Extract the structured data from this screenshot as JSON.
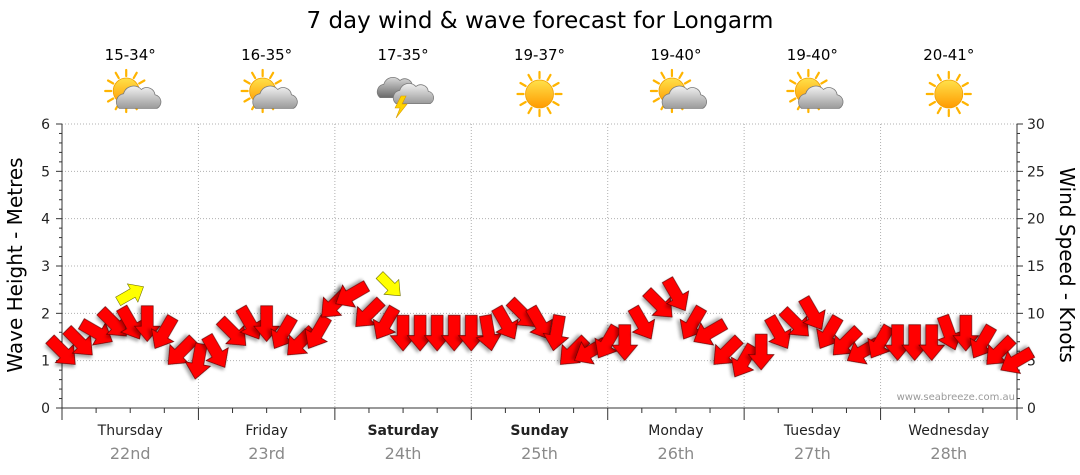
{
  "chart_data": {
    "type": "line",
    "title": "7 day wind & wave forecast for Longarm",
    "ylabel_left": "Wave Height - Metres",
    "ylabel_right": "Wind Speed - Knots",
    "ylim_left": [
      0,
      6
    ],
    "ylim_right": [
      0,
      30
    ],
    "yticks_left": [
      "0",
      "1",
      "2",
      "3",
      "4",
      "5",
      "6"
    ],
    "yticks_right": [
      "0",
      "5",
      "10",
      "15",
      "20",
      "25",
      "30"
    ],
    "days": [
      {
        "name": "Thursday",
        "date": "22nd",
        "temp": "15-34°",
        "icon": "partly-cloudy-icon",
        "bold": false
      },
      {
        "name": "Friday",
        "date": "23rd",
        "temp": "16-35°",
        "icon": "partly-cloudy-icon",
        "bold": false
      },
      {
        "name": "Saturday",
        "date": "24th",
        "temp": "17-35°",
        "icon": "thunderstorm-icon",
        "bold": true
      },
      {
        "name": "Sunday",
        "date": "25th",
        "temp": "19-37°",
        "icon": "sunny-icon",
        "bold": true
      },
      {
        "name": "Monday",
        "date": "26th",
        "temp": "19-40°",
        "icon": "partly-cloudy-icon",
        "bold": false
      },
      {
        "name": "Tuesday",
        "date": "27th",
        "temp": "19-40°",
        "icon": "partly-cloudy-icon",
        "bold": false
      },
      {
        "name": "Wednesday",
        "date": "28th",
        "temp": "20-41°",
        "icon": "sunny-icon",
        "bold": false
      }
    ],
    "wind_series": {
      "name": "Wind (knots)",
      "time_days": [
        0.0,
        0.125,
        0.25,
        0.375,
        0.5,
        0.625,
        0.75,
        0.875,
        1.0,
        1.125,
        1.25,
        1.375,
        1.5,
        1.625,
        1.75,
        1.875,
        2.0,
        2.125,
        2.25,
        2.375,
        2.5,
        2.625,
        2.75,
        2.875,
        3.0,
        3.125,
        3.25,
        3.375,
        3.5,
        3.625,
        3.75,
        3.875,
        4.0,
        4.125,
        4.25,
        4.375,
        4.5,
        4.625,
        4.75,
        4.875,
        5.0,
        5.125,
        5.25,
        5.375,
        5.5,
        5.625,
        5.75,
        5.875,
        6.0,
        6.125,
        6.25,
        6.375,
        6.5,
        6.625,
        6.75,
        6.875,
        7.0
      ],
      "knots": [
        6,
        7,
        8,
        9,
        9,
        9,
        8,
        6,
        5,
        6,
        8,
        9,
        9,
        8,
        7,
        8,
        11,
        12,
        10,
        9,
        8,
        8,
        8,
        8,
        8,
        8,
        9,
        10,
        9,
        8,
        6,
        6,
        7,
        7,
        9,
        11,
        12,
        9,
        8,
        6,
        5,
        6,
        8,
        9,
        10,
        8,
        7,
        6,
        7,
        7,
        7,
        7,
        8,
        8,
        7,
        6,
        5
      ],
      "direction_deg": [
        45,
        45,
        30,
        45,
        60,
        90,
        120,
        135,
        100,
        60,
        45,
        60,
        90,
        120,
        135,
        120,
        135,
        150,
        135,
        120,
        90,
        90,
        90,
        90,
        90,
        80,
        60,
        45,
        60,
        100,
        135,
        150,
        120,
        90,
        60,
        45,
        60,
        120,
        150,
        135,
        120,
        90,
        60,
        45,
        60,
        120,
        135,
        150,
        120,
        90,
        90,
        90,
        70,
        90,
        120,
        135,
        150
      ],
      "highlight_index": 7
    },
    "wave_series": {
      "name": "Wave height (m)",
      "time_days": [
        0.5,
        2.4
      ],
      "metres": [
        2.4,
        2.6
      ],
      "direction_deg": [
        60,
        135
      ],
      "color": "#ffff00"
    },
    "colors": {
      "wind": "#ff0000",
      "wave": "#ffff00",
      "grid": "#b0b0b0",
      "axis": "#333333"
    },
    "credit": "www.seabreeze.com.au"
  }
}
